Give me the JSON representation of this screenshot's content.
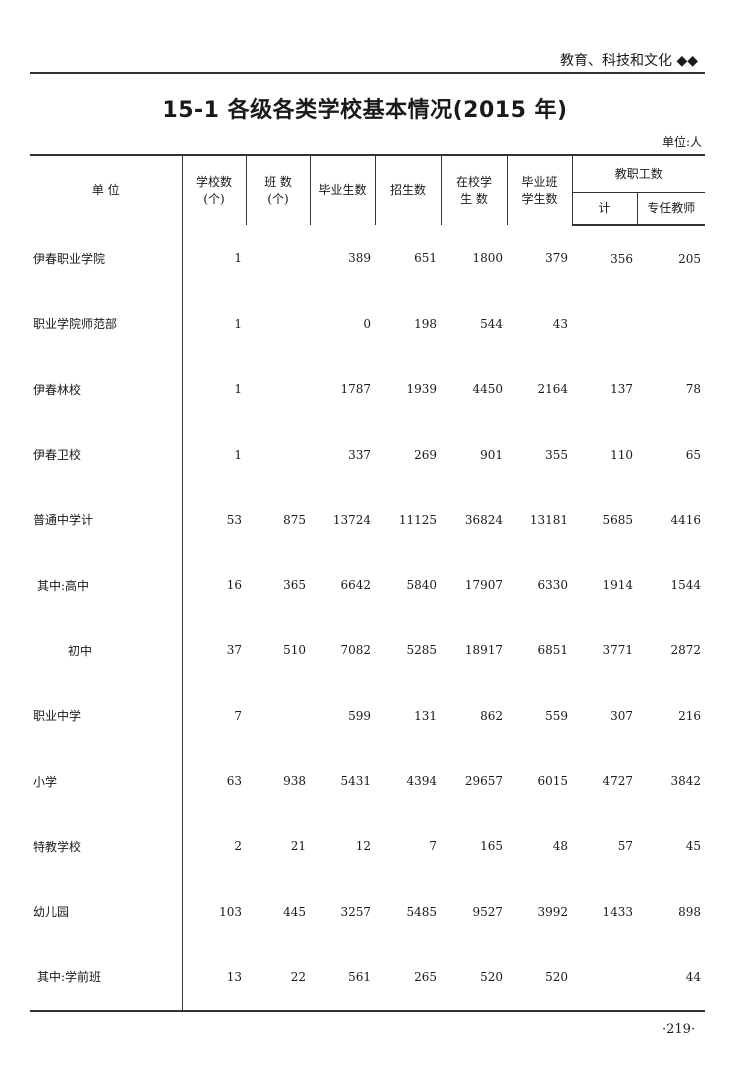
{
  "header": {
    "section": "教育、科技和文化 ◆◆"
  },
  "title": "15-1   各级各类学校基本情况(2015 年)",
  "unit": "单位:人",
  "columns": {
    "unit": "单  位",
    "schools": [
      "学校数",
      "(个)"
    ],
    "classes": [
      "班  数",
      "(个)"
    ],
    "graduates": "毕业生数",
    "enrollment": "招生数",
    "students": [
      "在校学",
      "生  数"
    ],
    "grad_class": [
      "毕业班",
      "学生数"
    ],
    "staff": "教职工数",
    "staff_total": "计",
    "teachers": "专任教师"
  },
  "rows": [
    {
      "label": "伊春职业学院",
      "indent": 0,
      "values": [
        "1",
        "",
        "389",
        "651",
        "1800",
        "379",
        "356",
        "205"
      ]
    },
    {
      "label": "职业学院师范部",
      "indent": 0,
      "values": [
        "1",
        "",
        "0",
        "198",
        "544",
        "43",
        "",
        ""
      ]
    },
    {
      "label": "伊春林校",
      "indent": 0,
      "values": [
        "1",
        "",
        "1787",
        "1939",
        "4450",
        "2164",
        "137",
        "78"
      ]
    },
    {
      "label": "伊春卫校",
      "indent": 0,
      "values": [
        "1",
        "",
        "337",
        "269",
        "901",
        "355",
        "110",
        "65"
      ]
    },
    {
      "label": "普通中学计",
      "indent": 0,
      "values": [
        "53",
        "875",
        "13724",
        "11125",
        "36824",
        "13181",
        "5685",
        "4416"
      ]
    },
    {
      "label": "其中:高中",
      "indent": 1,
      "values": [
        "16",
        "365",
        "6642",
        "5840",
        "17907",
        "6330",
        "1914",
        "1544"
      ]
    },
    {
      "label": "初中",
      "indent": 2,
      "values": [
        "37",
        "510",
        "7082",
        "5285",
        "18917",
        "6851",
        "3771",
        "2872"
      ]
    },
    {
      "label": "职业中学",
      "indent": 0,
      "values": [
        "7",
        "",
        "599",
        "131",
        "862",
        "559",
        "307",
        "216"
      ]
    },
    {
      "label": "小学",
      "indent": 0,
      "values": [
        "63",
        "938",
        "5431",
        "4394",
        "29657",
        "6015",
        "4727",
        "3842"
      ]
    },
    {
      "label": "特教学校",
      "indent": 0,
      "values": [
        "2",
        "21",
        "12",
        "7",
        "165",
        "48",
        "57",
        "45"
      ]
    },
    {
      "label": "幼儿园",
      "indent": 0,
      "values": [
        "103",
        "445",
        "3257",
        "5485",
        "9527",
        "3992",
        "1433",
        "898"
      ]
    },
    {
      "label": "其中:学前班",
      "indent": 1,
      "values": [
        "13",
        "22",
        "561",
        "265",
        "520",
        "520",
        "",
        "44"
      ]
    }
  ],
  "page_number": "·219·"
}
